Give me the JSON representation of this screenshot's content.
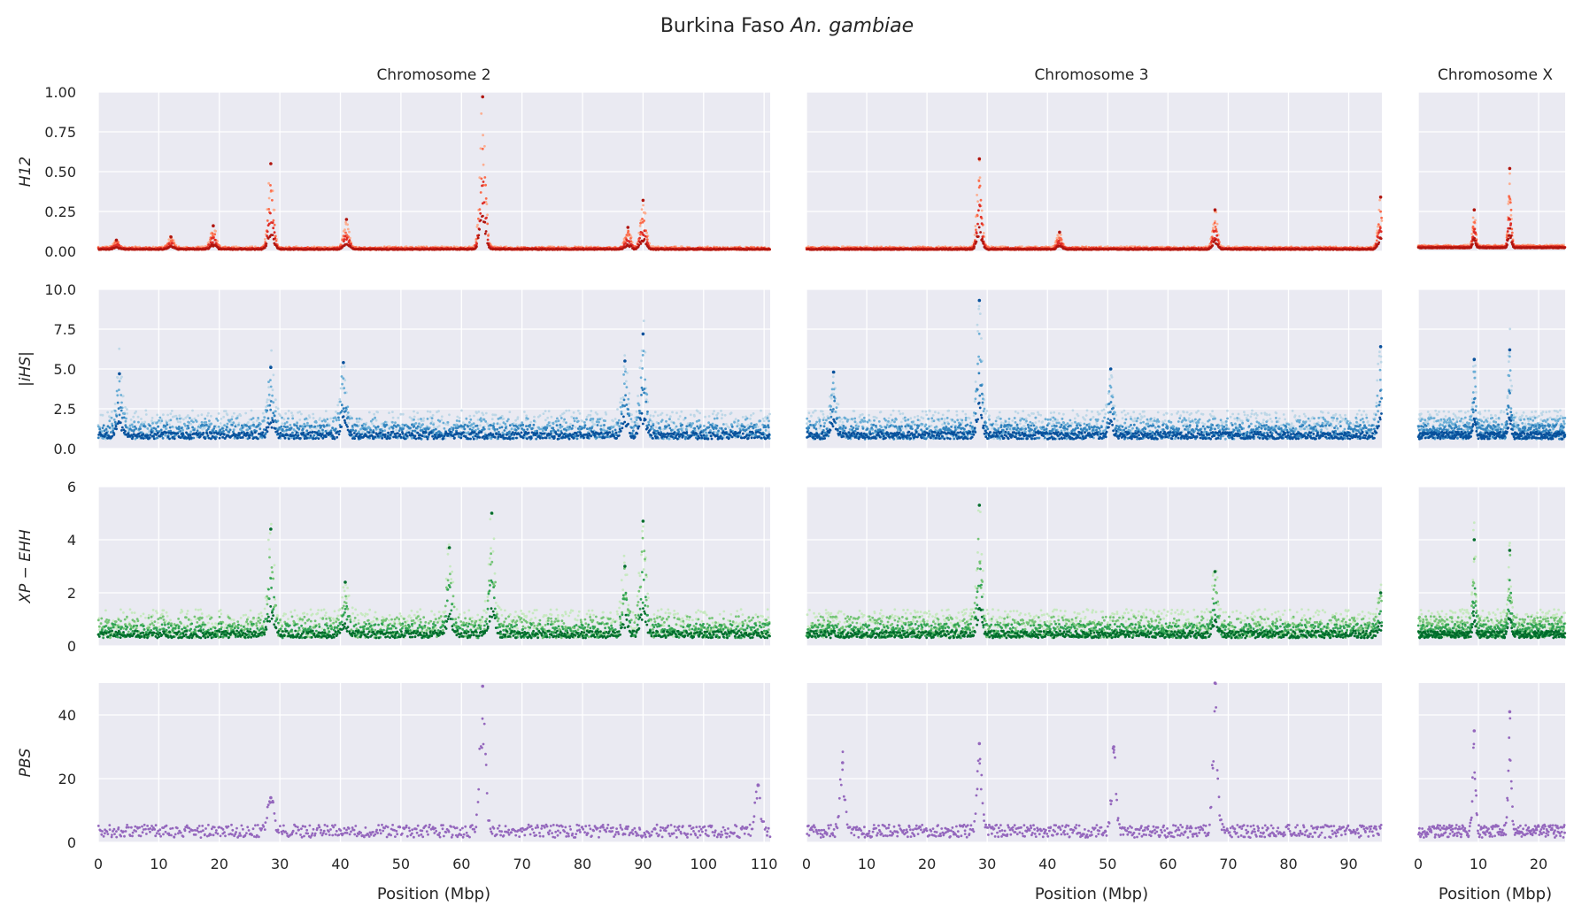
{
  "figure": {
    "title_plain": "Burkina Faso ",
    "title_italic": "An. gambiae"
  },
  "columns": [
    {
      "title": "Chromosome 2",
      "xlim": [
        0,
        111
      ],
      "xticks": [
        0,
        10,
        20,
        30,
        40,
        50,
        60,
        70,
        80,
        90,
        100,
        110
      ]
    },
    {
      "title": "Chromosome 3",
      "xlim": [
        0,
        95.5
      ],
      "xticks": [
        0,
        10,
        20,
        30,
        40,
        50,
        60,
        70,
        80,
        90
      ]
    },
    {
      "title": "Chromosome X",
      "xlim": [
        0,
        24.4
      ],
      "xticks": [
        0,
        10,
        20
      ]
    }
  ],
  "xlabel": "Position (Mbp)",
  "rows": [
    {
      "ylabel": "H12",
      "ylim": [
        0,
        1.0
      ],
      "yticks": [
        "0.00",
        "0.25",
        "0.50",
        "0.75",
        "1.00"
      ],
      "colors": [
        "#fcae91",
        "#fb6a4a",
        "#de2d26",
        "#b0150e"
      ]
    },
    {
      "ylabel": "|iHS|",
      "ylim": [
        0,
        10
      ],
      "yticks": [
        "0.0",
        "2.5",
        "5.0",
        "7.5",
        "10.0"
      ],
      "colors": [
        "#bdd7e7",
        "#6baed6",
        "#3182bd",
        "#08519c"
      ]
    },
    {
      "ylabel": "XP − EHH",
      "ylim": [
        0,
        6
      ],
      "yticks": [
        "0",
        "2",
        "4",
        "6"
      ],
      "colors": [
        "#c7e9c0",
        "#74c476",
        "#31a354",
        "#006d2c"
      ]
    },
    {
      "ylabel": "PBS",
      "ylim": [
        0,
        50
      ],
      "yticks": [
        "0",
        "20",
        "40"
      ],
      "colors": [
        "#9467bd"
      ]
    }
  ],
  "chart_data": {
    "type": "scatter",
    "title": "Burkina Faso An. gambiae",
    "xlabel": "Position (Mbp)",
    "grid": true,
    "panels": [
      {
        "statistic": "H12",
        "chromosome": "2",
        "ylim": [
          0,
          1.0
        ],
        "baseline": 0.01,
        "peaks": [
          {
            "x": 28.5,
            "y": 0.55
          },
          {
            "x": 41,
            "y": 0.2
          },
          {
            "x": 19,
            "y": 0.16
          },
          {
            "x": 12,
            "y": 0.09
          },
          {
            "x": 3,
            "y": 0.07
          },
          {
            "x": 63.5,
            "y": 0.97
          },
          {
            "x": 87.5,
            "y": 0.15
          },
          {
            "x": 90,
            "y": 0.32
          }
        ]
      },
      {
        "statistic": "H12",
        "chromosome": "3",
        "ylim": [
          0,
          1.0
        ],
        "baseline": 0.01,
        "peaks": [
          {
            "x": 28.7,
            "y": 0.58
          },
          {
            "x": 67.8,
            "y": 0.26
          },
          {
            "x": 95.3,
            "y": 0.34
          },
          {
            "x": 42,
            "y": 0.12
          }
        ]
      },
      {
        "statistic": "H12",
        "chromosome": "X",
        "ylim": [
          0,
          1.0
        ],
        "baseline": 0.02,
        "peaks": [
          {
            "x": 9.3,
            "y": 0.26
          },
          {
            "x": 15.2,
            "y": 0.52
          }
        ]
      },
      {
        "statistic": "|iHS|",
        "chromosome": "2",
        "ylim": [
          0,
          10
        ],
        "baseline": 0.6,
        "peaks": [
          {
            "x": 3.5,
            "y": 4.7
          },
          {
            "x": 28.5,
            "y": 5.1
          },
          {
            "x": 40.5,
            "y": 5.4
          },
          {
            "x": 90,
            "y": 7.2
          },
          {
            "x": 87,
            "y": 5.5
          }
        ]
      },
      {
        "statistic": "|iHS|",
        "chromosome": "3",
        "ylim": [
          0,
          10
        ],
        "baseline": 0.6,
        "peaks": [
          {
            "x": 28.7,
            "y": 9.3
          },
          {
            "x": 4.5,
            "y": 4.8
          },
          {
            "x": 50.5,
            "y": 5.0
          },
          {
            "x": 95.3,
            "y": 6.4
          }
        ]
      },
      {
        "statistic": "|iHS|",
        "chromosome": "X",
        "ylim": [
          0,
          10
        ],
        "baseline": 0.6,
        "peaks": [
          {
            "x": 9.3,
            "y": 5.6
          },
          {
            "x": 15.2,
            "y": 6.2
          }
        ]
      },
      {
        "statistic": "XP − EHH",
        "chromosome": "2",
        "ylim": [
          0,
          6
        ],
        "baseline": 0.3,
        "peaks": [
          {
            "x": 28.5,
            "y": 4.4
          },
          {
            "x": 40.8,
            "y": 2.4
          },
          {
            "x": 58,
            "y": 3.7
          },
          {
            "x": 65,
            "y": 5.0
          },
          {
            "x": 87,
            "y": 3.0
          },
          {
            "x": 90,
            "y": 4.7
          }
        ]
      },
      {
        "statistic": "XP − EHH",
        "chromosome": "3",
        "ylim": [
          0,
          6
        ],
        "baseline": 0.3,
        "peaks": [
          {
            "x": 28.7,
            "y": 5.3
          },
          {
            "x": 67.8,
            "y": 2.8
          },
          {
            "x": 95.3,
            "y": 2.0
          }
        ]
      },
      {
        "statistic": "XP − EHH",
        "chromosome": "X",
        "ylim": [
          0,
          6
        ],
        "baseline": 0.3,
        "peaks": [
          {
            "x": 9.3,
            "y": 4.0
          },
          {
            "x": 15.2,
            "y": 3.6
          }
        ]
      },
      {
        "statistic": "PBS",
        "chromosome": "2",
        "ylim": [
          0,
          50
        ],
        "baseline": 1.5,
        "peaks": [
          {
            "x": 28.5,
            "y": 14
          },
          {
            "x": 63.5,
            "y": 49
          },
          {
            "x": 109,
            "y": 18
          }
        ]
      },
      {
        "statistic": "PBS",
        "chromosome": "3",
        "ylim": [
          0,
          50
        ],
        "baseline": 1.5,
        "peaks": [
          {
            "x": 28.7,
            "y": 31
          },
          {
            "x": 67.8,
            "y": 50
          },
          {
            "x": 6,
            "y": 25
          },
          {
            "x": 51,
            "y": 30
          }
        ]
      },
      {
        "statistic": "PBS",
        "chromosome": "X",
        "ylim": [
          0,
          50
        ],
        "baseline": 1.5,
        "peaks": [
          {
            "x": 9.3,
            "y": 35
          },
          {
            "x": 15.2,
            "y": 41
          }
        ]
      }
    ]
  }
}
